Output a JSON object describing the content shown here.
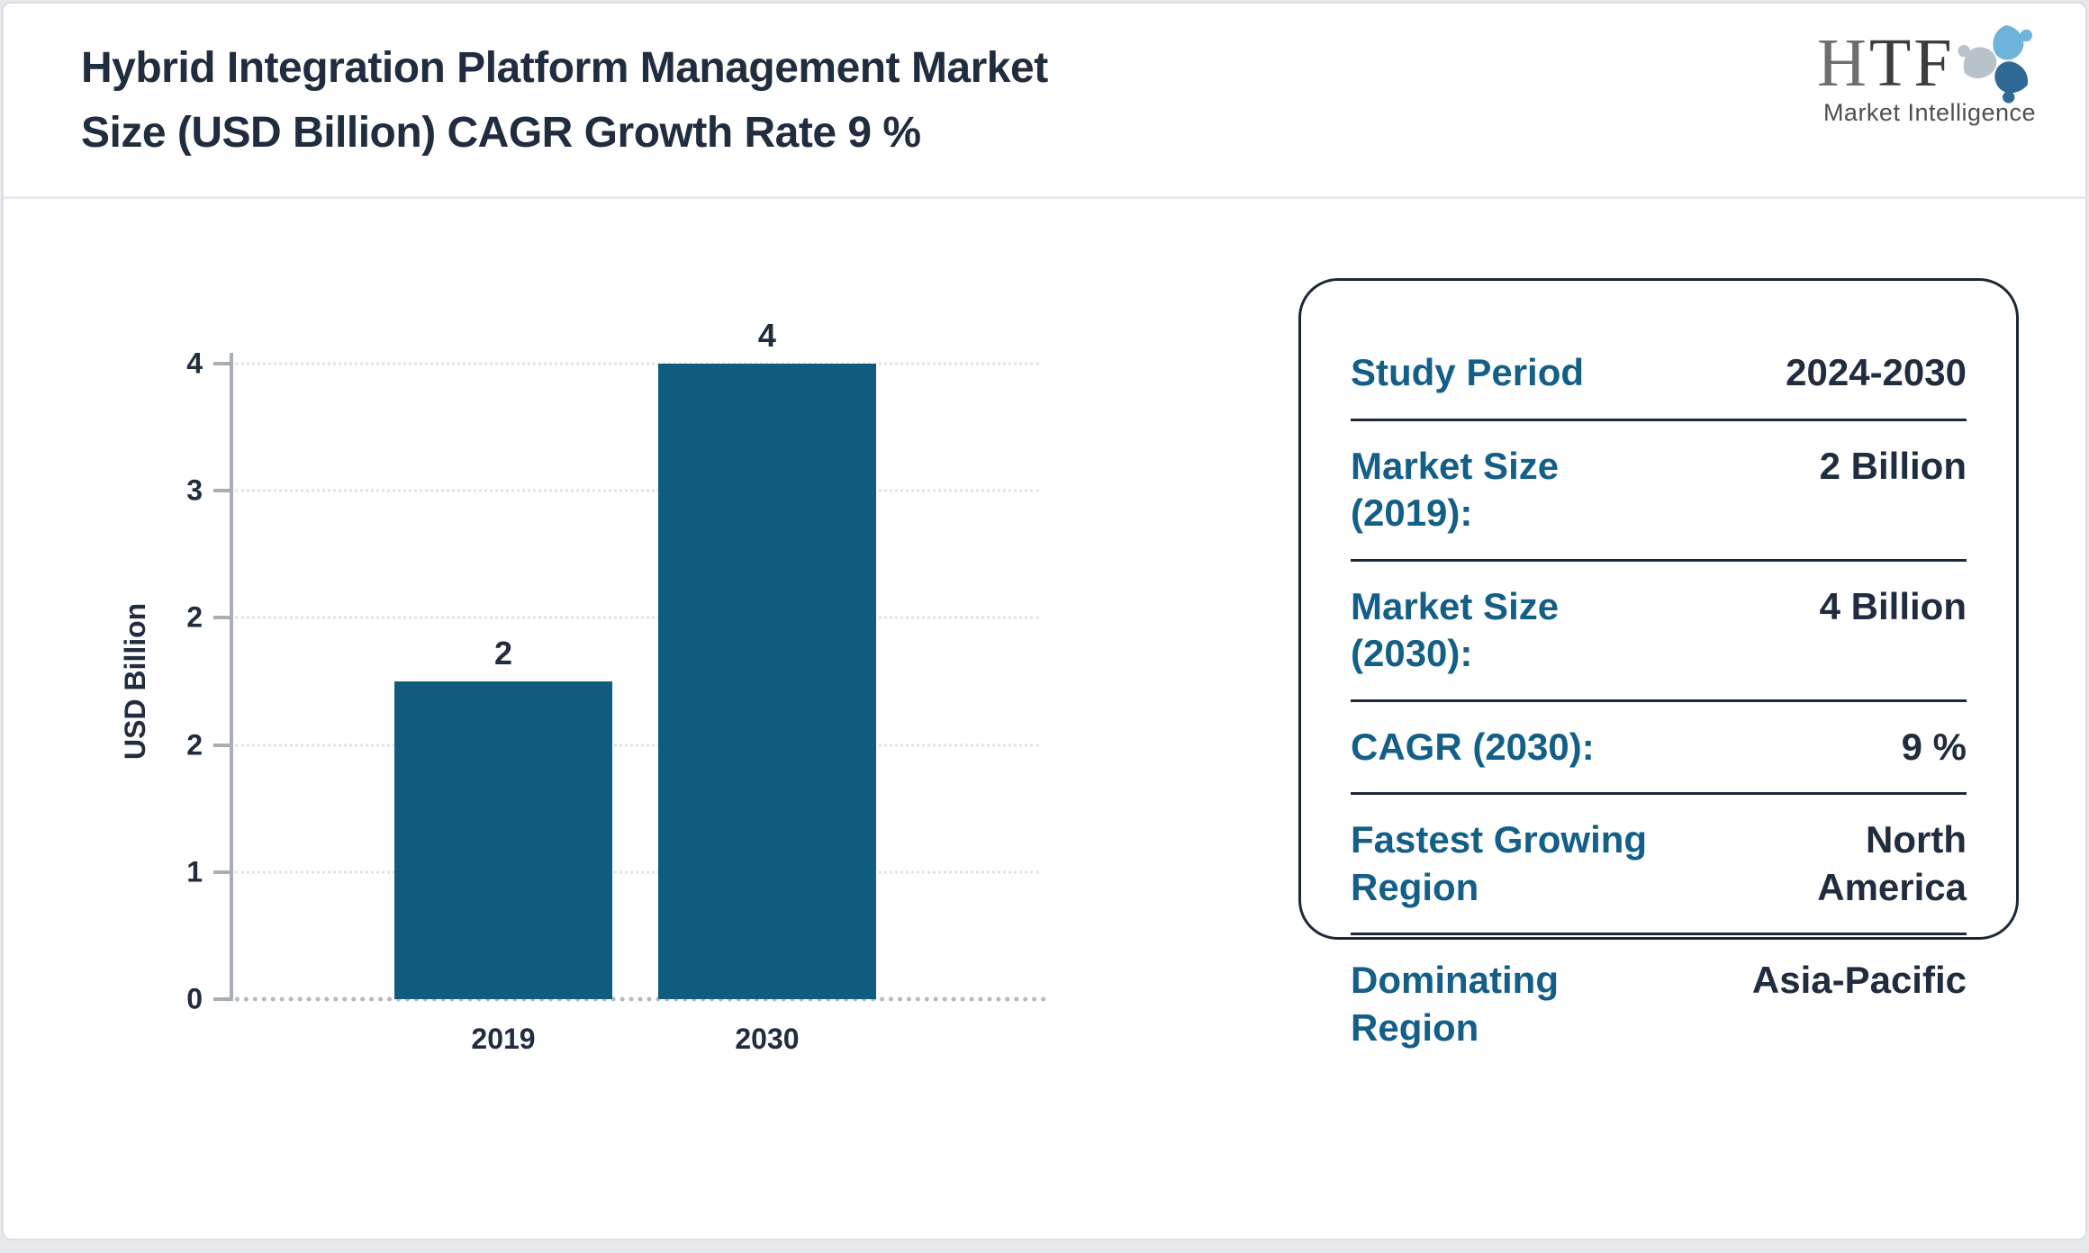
{
  "page": {
    "title": "Hybrid Integration Platform Management Market\nSize (USD Billion) CAGR Growth Rate 9 %"
  },
  "logo": {
    "name_h": "H",
    "name_tf": "TF",
    "subtitle": "Market Intelligence",
    "icon": "htf-people-swirl-icon",
    "icon_colors": {
      "light_blue": "#6fb3da",
      "dark_blue": "#2e6a95",
      "gray": "#b7c2ca"
    }
  },
  "chart_data": {
    "type": "bar",
    "title": "Hybrid Integration Platform Management Market Size (USD Billion) CAGR Growth Rate 9 %",
    "categories": [
      "2019",
      "2030"
    ],
    "values": [
      2,
      4
    ],
    "bar_labels": [
      "2",
      "4"
    ],
    "xlabel": "",
    "ylabel": "USD Billion",
    "ylim": [
      0,
      4
    ],
    "ytick_labels_top_to_bottom": [
      "4",
      "3",
      "2",
      "2",
      "1",
      "0"
    ],
    "grid": "horizontal dotted",
    "legend": "none",
    "bar_color": "#0f5c7e"
  },
  "info_card": {
    "rows": [
      {
        "label": "Study Period",
        "value": "2024-2030"
      },
      {
        "label": "Market Size (2019):",
        "value": "2 Billion"
      },
      {
        "label": "Market Size (2030):",
        "value": "4 Billion"
      },
      {
        "label": "CAGR (2030):",
        "value": "9 %"
      },
      {
        "label": "Fastest Growing Region",
        "value": "North America"
      },
      {
        "label": "Dominating Region",
        "value": "Asia-Pacific"
      }
    ]
  },
  "colors": {
    "accent_teal": "#135f87",
    "dark_navy": "#202d3e",
    "bar_teal": "#0f5c7e",
    "axis_gray": "#a8adb6"
  }
}
